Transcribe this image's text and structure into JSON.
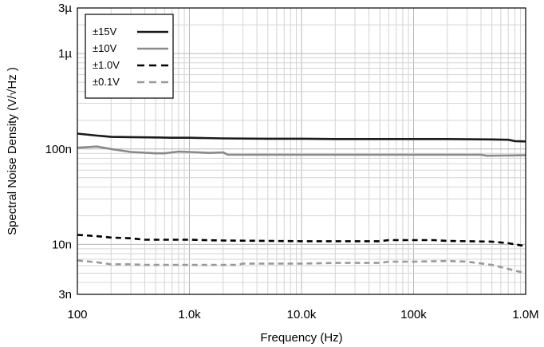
{
  "chart_data": {
    "type": "line",
    "title": "",
    "xlabel": "Frequency (Hz)",
    "ylabel": "Spectral Noise Density (V/√Hz )",
    "x_scale": "log",
    "y_scale": "log",
    "xlim": [
      100,
      1000000
    ],
    "ylim": [
      3e-09,
      3e-06
    ],
    "grid": true,
    "legend_position": "top-left",
    "x_ticks": [
      {
        "value": 100,
        "label": "100"
      },
      {
        "value": 1000,
        "label": "1.0k"
      },
      {
        "value": 10000,
        "label": "10.0k"
      },
      {
        "value": 100000,
        "label": "100k"
      },
      {
        "value": 1000000,
        "label": "1.0M"
      }
    ],
    "y_ticks": [
      {
        "value": 3e-09,
        "label": "3n"
      },
      {
        "value": 1e-08,
        "label": "10n"
      },
      {
        "value": 1e-07,
        "label": "100n"
      },
      {
        "value": 1e-06,
        "label": "1µ"
      },
      {
        "value": 3e-06,
        "label": "3µ"
      }
    ],
    "series": [
      {
        "name": "±15V",
        "color": "#1a1a1a",
        "dash": "solid",
        "x": [
          100,
          150,
          200,
          300,
          500,
          700,
          1000,
          2000,
          5000,
          10000,
          20000,
          50000,
          100000,
          200000,
          500000,
          700000,
          800000,
          1000000
        ],
        "y": [
          1.45e-07,
          1.38e-07,
          1.34e-07,
          1.33e-07,
          1.32e-07,
          1.31e-07,
          1.31e-07,
          1.29e-07,
          1.28e-07,
          1.28e-07,
          1.27e-07,
          1.27e-07,
          1.27e-07,
          1.27e-07,
          1.26e-07,
          1.25e-07,
          1.21e-07,
          1.2e-07
        ]
      },
      {
        "name": "±10V",
        "color": "#8a8a8a",
        "dash": "solid",
        "x": [
          100,
          150,
          200,
          300,
          500,
          600,
          800,
          1000,
          1500,
          2000,
          2200,
          5000,
          10000,
          50000,
          100000,
          200000,
          400000,
          450000,
          1000000
        ],
        "y": [
          1.03e-07,
          1.06e-07,
          1e-07,
          9.3e-08,
          9e-08,
          9e-08,
          9.4e-08,
          9.3e-08,
          9.1e-08,
          9.2e-08,
          8.7e-08,
          8.7e-08,
          8.7e-08,
          8.7e-08,
          8.7e-08,
          8.7e-08,
          8.7e-08,
          8.5e-08,
          8.6e-08
        ]
      },
      {
        "name": "±1.0V",
        "color": "#000000",
        "dash": "dashed",
        "x": [
          100,
          150,
          200,
          300,
          400,
          500,
          1000,
          2000,
          5000,
          10000,
          30000,
          50000,
          60000,
          100000,
          150000,
          200000,
          500000,
          700000,
          1000000
        ],
        "y": [
          1.26e-08,
          1.22e-08,
          1.18e-08,
          1.16e-08,
          1.12e-08,
          1.12e-08,
          1.12e-08,
          1.1e-08,
          1.09e-08,
          1.08e-08,
          1.08e-08,
          1.08e-08,
          1.11e-08,
          1.11e-08,
          1.11e-08,
          1.09e-08,
          1.07e-08,
          1.03e-08,
          9.6e-09
        ]
      },
      {
        "name": "±0.1V",
        "color": "#999999",
        "dash": "dashed",
        "x": [
          100,
          150,
          200,
          300,
          400,
          500,
          1000,
          2000,
          2700,
          3000,
          5000,
          10000,
          20000,
          50000,
          60000,
          100000,
          200000,
          300000,
          500000,
          1000000
        ],
        "y": [
          6.8e-09,
          6.5e-09,
          6.2e-09,
          6.2e-09,
          6.1e-09,
          6.1e-09,
          6.1e-09,
          6.1e-09,
          6.1e-09,
          6.3e-09,
          6.3e-09,
          6.3e-09,
          6.4e-09,
          6.4e-09,
          6.6e-09,
          6.6e-09,
          6.7e-09,
          6.6e-09,
          6.1e-09,
          5e-09
        ]
      }
    ]
  }
}
